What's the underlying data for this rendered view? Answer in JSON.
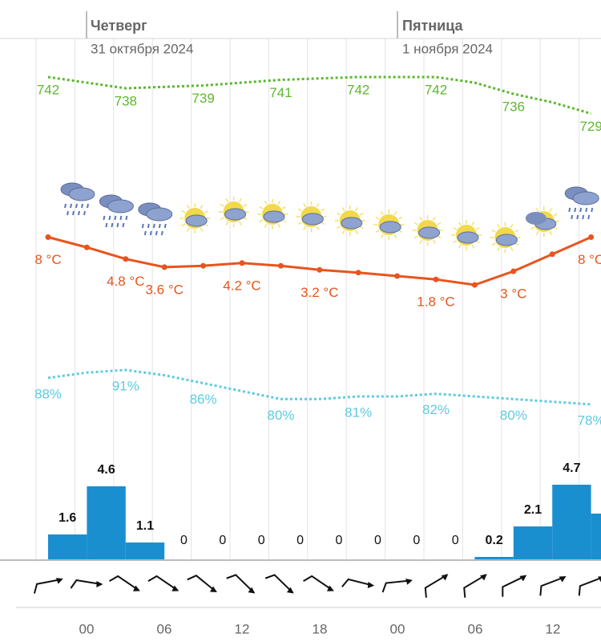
{
  "days": [
    {
      "name": "Четверг",
      "date": "31 октября 2024"
    },
    {
      "name": "Пятница",
      "date": "1 ноября 2024"
    }
  ],
  "pressure": {
    "values": [
      742,
      740,
      738,
      738.5,
      739,
      740,
      741,
      741.5,
      742,
      742,
      742,
      740,
      736,
      733,
      729
    ]
  },
  "temperature": {
    "values": [
      8,
      6.5,
      4.8,
      3.6,
      3.8,
      4.2,
      3.8,
      3.2,
      2.8,
      2.3,
      1.8,
      1,
      3,
      5.5,
      8
    ],
    "value_labels": [
      "8 °C",
      null,
      "4.8 °C",
      "3.6 °C",
      null,
      "4.2 °C",
      null,
      "3.2 °C",
      null,
      null,
      "1.8 °C",
      null,
      "3 °C",
      null,
      "8 °C"
    ]
  },
  "humidity": {
    "values": [
      88,
      90,
      91,
      89,
      86,
      83,
      80,
      80,
      81,
      81,
      82,
      81,
      80,
      79,
      78
    ],
    "value_labels": [
      "88%",
      null,
      "91%",
      null,
      "86%",
      null,
      "80%",
      null,
      "81%",
      null,
      "82%",
      null,
      "80%",
      null,
      "78%"
    ]
  },
  "precipitation": {
    "values": [
      1.6,
      4.6,
      1.1,
      0,
      0,
      0,
      0,
      0,
      0,
      0,
      0,
      0.2,
      2.1,
      4.7,
      2.9
    ]
  },
  "time_labels": [
    "00",
    "06",
    "12",
    "18",
    "00",
    "06",
    "12"
  ]
}
